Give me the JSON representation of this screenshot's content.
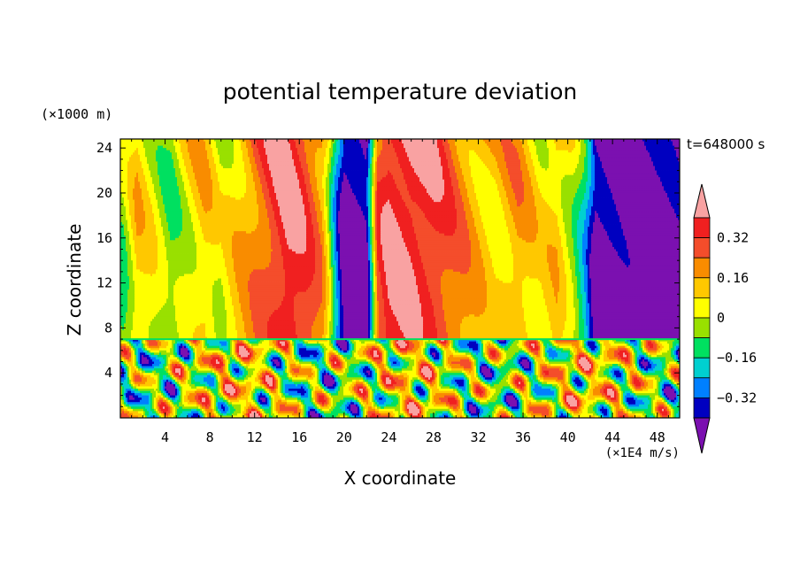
{
  "chart_data": {
    "type": "heatmap",
    "title": "potential temperature deviation",
    "xlabel": "X coordinate",
    "ylabel": "Z coordinate",
    "x_unit_label": "(×1E4 m/s)",
    "y_unit_label": "(×1000 m)",
    "time_label": "t=648000 s",
    "xlim": [
      0,
      50
    ],
    "ylim": [
      0,
      24.8
    ],
    "x_ticks": [
      4,
      8,
      12,
      16,
      20,
      24,
      28,
      32,
      36,
      40,
      44,
      48
    ],
    "y_ticks": [
      4,
      8,
      12,
      16,
      20,
      24
    ],
    "colorbar": {
      "levels": [
        -0.4,
        -0.32,
        -0.24,
        -0.16,
        -0.08,
        0,
        0.08,
        0.16,
        0.24,
        0.32,
        0.4
      ],
      "labels": [
        "0.32",
        "0.16",
        "0",
        "−0.16",
        "−0.32"
      ],
      "label_values": [
        0.32,
        0.16,
        0,
        -0.16,
        -0.32
      ],
      "colors": [
        "#f9a2a2",
        "#f02020",
        "#f44d2b",
        "#f98c00",
        "#ffc800",
        "#ffff00",
        "#99e000",
        "#00e060",
        "#00d0d0",
        "#0080ff",
        "#0000c0",
        "#5000a0",
        "#7b10b0"
      ]
    },
    "upper_layer": {
      "z_range": [
        7,
        24.8
      ],
      "columns": [
        {
          "x": 0.3,
          "value": -0.06
        },
        {
          "x": 1.5,
          "value": 0.12
        },
        {
          "x": 3.0,
          "value": 0.05
        },
        {
          "x": 4.5,
          "value": -0.05
        },
        {
          "x": 6.0,
          "value": 0.05
        },
        {
          "x": 7.5,
          "value": 0.12
        },
        {
          "x": 9.0,
          "value": 0.03
        },
        {
          "x": 10.5,
          "value": 0.14
        },
        {
          "x": 12.0,
          "value": 0.24
        },
        {
          "x": 13.5,
          "value": 0.33
        },
        {
          "x": 15.0,
          "value": 0.42
        },
        {
          "x": 16.5,
          "value": 0.35
        },
        {
          "x": 18.0,
          "value": 0.22
        },
        {
          "x": 18.6,
          "value": 0.05
        },
        {
          "x": 19.2,
          "value": -0.2
        },
        {
          "x": 20.0,
          "value": -0.45
        },
        {
          "x": 22.0,
          "value": -0.45
        },
        {
          "x": 22.5,
          "value": -0.1
        },
        {
          "x": 23.0,
          "value": 0.3
        },
        {
          "x": 24.0,
          "value": 0.42
        },
        {
          "x": 26.0,
          "value": 0.42
        },
        {
          "x": 28.0,
          "value": 0.36
        },
        {
          "x": 30.0,
          "value": 0.25
        },
        {
          "x": 31.5,
          "value": 0.18
        },
        {
          "x": 33.5,
          "value": 0.1
        },
        {
          "x": 35.5,
          "value": 0.18
        },
        {
          "x": 37.5,
          "value": 0.08
        },
        {
          "x": 39.0,
          "value": 0.14
        },
        {
          "x": 40.5,
          "value": 0.0
        },
        {
          "x": 41.5,
          "value": -0.18
        },
        {
          "x": 42.5,
          "value": -0.45
        },
        {
          "x": 50.0,
          "value": -0.45
        }
      ]
    },
    "lower_layer": {
      "z_range": [
        0,
        7
      ],
      "description_note": ""
    }
  }
}
